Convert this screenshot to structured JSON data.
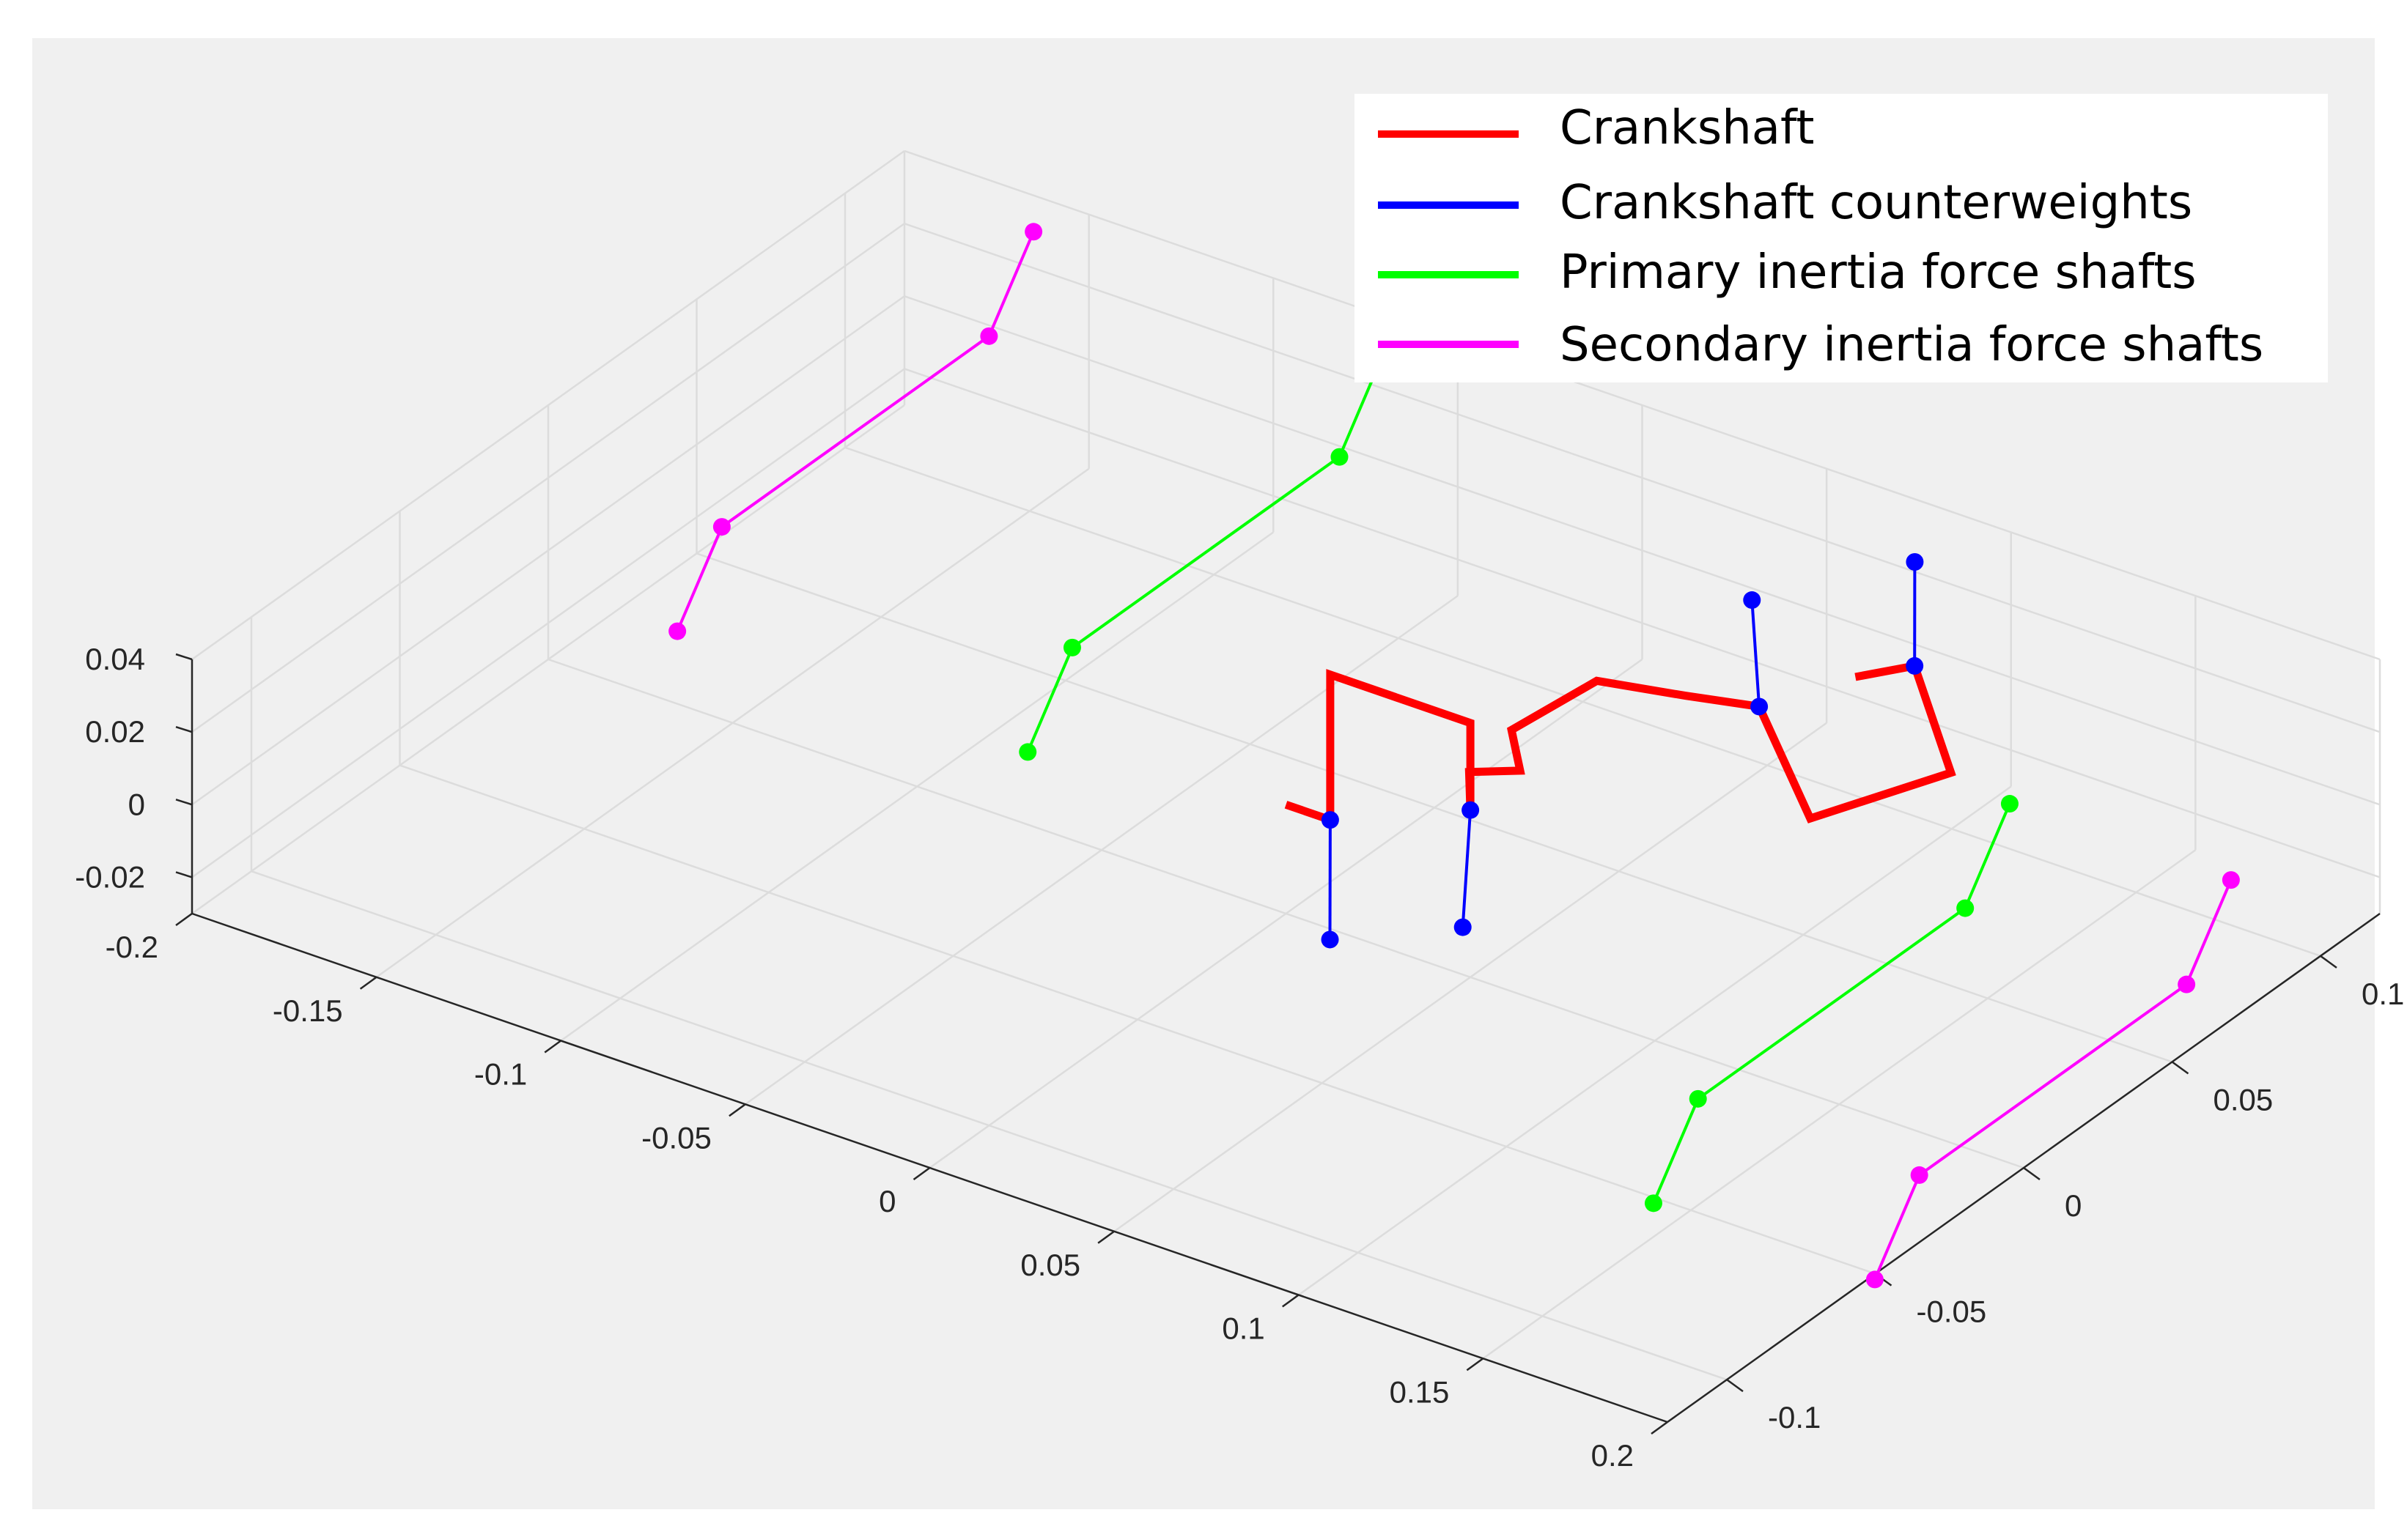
{
  "chart_data": {
    "type": "line",
    "view": "3d",
    "title": "",
    "xlabel": "",
    "ylabel": "",
    "zlabel": "",
    "grid": true,
    "legend_position": "top-right",
    "xlim": [
      -0.2,
      0.2
    ],
    "ylim": [
      -0.12,
      0.12
    ],
    "zlim": [
      -0.03,
      0.04
    ],
    "x_ticks": [
      -0.2,
      -0.15,
      -0.1,
      -0.05,
      0,
      0.05,
      0.1,
      0.15,
      0.2
    ],
    "x_tick_labels": [
      "-0.2",
      "-0.15",
      "-0.1",
      "-0.05",
      "0",
      "0.05",
      "0.1",
      "0.15",
      "0.2"
    ],
    "y_ticks": [
      -0.1,
      -0.05,
      0,
      0.05,
      0.1
    ],
    "y_tick_labels": [
      "-0.1",
      "-0.05",
      "0",
      "0.05",
      "0.1"
    ],
    "z_ticks": [
      -0.02,
      0,
      0.02,
      0.04
    ],
    "z_tick_labels": [
      "-0.02",
      "0",
      "0.02",
      "0.04"
    ],
    "legend": [
      {
        "label": "Crankshaft",
        "color": "#ff0000"
      },
      {
        "label": "Crankshaft counterweights",
        "color": "#0000ff"
      },
      {
        "label": "Primary inertia force shafts",
        "color": "#00ff00"
      },
      {
        "label": "Secondary inertia force shafts",
        "color": "#ff00ff"
      }
    ],
    "series": [
      {
        "name": "Crankshaft",
        "color": "#ff0000",
        "markers": false,
        "points": [
          [
            0.0,
            0.0,
            0.0
          ],
          [
            0.012,
            0.0,
            0.0
          ],
          [
            0.012,
            0.0,
            0.04
          ],
          [
            0.05,
            0.0,
            0.04
          ],
          [
            0.05,
            0.0,
            0.016
          ],
          [
            0.04,
            0.012,
            0.016
          ],
          [
            0.049,
            0.018,
            0.016
          ],
          [
            0.037,
            0.03,
            0.016
          ],
          [
            0.04,
            0.055,
            0.016
          ],
          [
            0.06,
            0.06,
            0.016
          ],
          [
            0.08,
            0.06,
            0.02
          ],
          [
            0.118,
            0.03,
            0.02
          ],
          [
            0.132,
            0.06,
            0.02
          ],
          [
            0.098,
            0.09,
            0.02
          ],
          [
            0.09,
            0.08,
            0.02
          ]
        ]
      },
      {
        "name": "Crankshaft counterweights",
        "color": "#0000ff",
        "markers": true,
        "segments": [
          [
            [
              0.012,
              0.0,
              0.0
            ],
            [
              0.024,
              -0.015,
              -0.02
            ]
          ],
          [
            [
              0.05,
              0.0,
              0.016
            ],
            [
              0.06,
              -0.015,
              -0.004
            ]
          ],
          [
            [
              0.08,
              0.06,
              0.02
            ],
            [
              0.07,
              0.07,
              0.04
            ]
          ],
          [
            [
              0.098,
              0.09,
              0.02
            ],
            [
              0.09,
              0.1,
              0.04
            ]
          ]
        ]
      },
      {
        "name": "Primary inertia force shafts",
        "color": "#00ff00",
        "markers": true,
        "segments": [
          [
            [
              -0.07,
              0.0,
              -0.01
            ],
            [
              -0.07,
              0.015,
              0.01
            ],
            [
              -0.07,
              0.105,
              0.01
            ],
            [
              -0.07,
              0.12,
              0.03
            ]
          ],
          [
            [
              0.16,
              -0.075,
              -0.01
            ],
            [
              0.16,
              -0.06,
              0.01
            ],
            [
              0.16,
              0.03,
              0.01
            ],
            [
              0.16,
              0.045,
              0.03
            ]
          ]
        ]
      },
      {
        "name": "Secondary inertia force shafts",
        "color": "#ff00ff",
        "markers": true,
        "segments": [
          [
            [
              -0.165,
              0.0,
              -0.01
            ],
            [
              -0.165,
              0.015,
              0.01
            ],
            [
              -0.165,
              0.105,
              0.01
            ],
            [
              -0.165,
              0.12,
              0.03
            ]
          ],
          [
            [
              0.22,
              -0.075,
              -0.01
            ],
            [
              0.22,
              -0.06,
              0.01
            ],
            [
              0.22,
              0.03,
              0.01
            ],
            [
              0.22,
              0.045,
              0.03
            ]
          ]
        ]
      }
    ]
  }
}
